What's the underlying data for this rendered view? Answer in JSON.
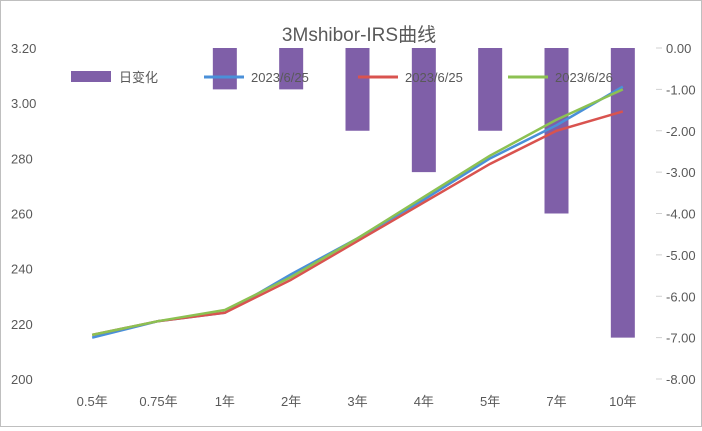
{
  "chart_data": {
    "type": "bar+line",
    "title": "3Mshibor-IRS曲线",
    "categories": [
      "0.5年",
      "0.75年",
      "1年",
      "2年",
      "3年",
      "4年",
      "5年",
      "7年",
      "10年"
    ],
    "bar_series": {
      "name": "日变化",
      "axis": "right",
      "color": "#7F5FA8",
      "values": [
        0,
        0,
        -1,
        -1,
        -2,
        -3,
        -2,
        -4,
        -7
      ]
    },
    "series": [
      {
        "name": "2023/6/25",
        "axis": "left",
        "color": "#4A90D9",
        "values": [
          2.15,
          2.21,
          2.24,
          2.38,
          2.51,
          2.65,
          2.8,
          2.92,
          3.06
        ]
      },
      {
        "name": "2023/6/25",
        "axis": "left",
        "color": "#D9534F",
        "values": [
          2.16,
          2.21,
          2.24,
          2.36,
          2.5,
          2.64,
          2.78,
          2.9,
          2.97
        ]
      },
      {
        "name": "2023/6/26",
        "axis": "left",
        "color": "#8CC152",
        "values": [
          2.16,
          2.21,
          2.25,
          2.37,
          2.51,
          2.66,
          2.81,
          2.94,
          3.05
        ]
      }
    ],
    "y_left": {
      "ylim": [
        2.0,
        3.2
      ],
      "tick_labels": [
        "200",
        "220",
        "240",
        "260",
        "280",
        "3.00",
        "3.20"
      ]
    },
    "y_right": {
      "ylim": [
        -8,
        0
      ],
      "tick_labels": [
        "-8.00",
        "-7.00",
        "-6.00",
        "-5.00",
        "-4.00",
        "-3.00",
        "-2.00",
        "-1.00",
        "0.00"
      ]
    },
    "grid": false,
    "legend_position": "top"
  }
}
